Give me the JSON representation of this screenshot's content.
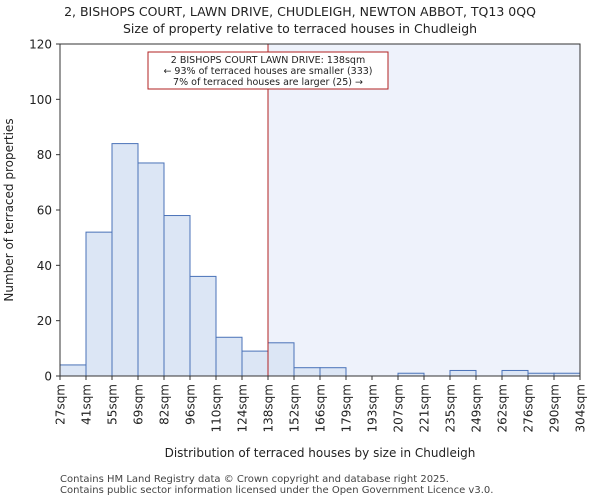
{
  "title_line1": "2, BISHOPS COURT, LAWN DRIVE, CHUDLEIGH, NEWTON ABBOT, TQ13 0QQ",
  "title_line2": "Size of property relative to terraced houses in Chudleigh",
  "footer_line1": "Contains HM Land Registry data © Crown copyright and database right 2025.",
  "footer_line2": "Contains public sector information licensed under the Open Government Licence v3.0.",
  "colors": {
    "bar_fill": "#dce6f5",
    "bar_stroke": "#4a72b8",
    "highlight_bg": "#eef2fb",
    "marker_line": "#b22222",
    "annotation_border": "#b22222"
  },
  "chart_data": {
    "type": "bar",
    "xlabel": "Distribution of terraced houses by size in Chudleigh",
    "ylabel": "Number of terraced properties",
    "ylim": [
      0,
      120
    ],
    "yticks": [
      0,
      20,
      40,
      60,
      80,
      100,
      120
    ],
    "bin_edges": [
      27,
      41,
      55,
      69,
      82,
      96,
      110,
      124,
      138,
      152,
      166,
      179,
      193,
      207,
      221,
      235,
      249,
      262,
      276,
      290,
      304
    ],
    "tick_labels": [
      "27sqm",
      "41sqm",
      "55sqm",
      "69sqm",
      "82sqm",
      "96sqm",
      "110sqm",
      "124sqm",
      "138sqm",
      "152sqm",
      "166sqm",
      "179sqm",
      "193sqm",
      "207sqm",
      "221sqm",
      "235sqm",
      "249sqm",
      "262sqm",
      "276sqm",
      "290sqm",
      "304sqm"
    ],
    "values": [
      4,
      52,
      84,
      77,
      58,
      36,
      14,
      9,
      12,
      3,
      3,
      0,
      0,
      1,
      0,
      2,
      0,
      2,
      1,
      1
    ],
    "marker_value": 138,
    "highlight_from_bin": 8,
    "annotation": {
      "line1": "2 BISHOPS COURT LAWN DRIVE: 138sqm",
      "line2": "← 93% of terraced houses are smaller (333)",
      "line3": "7% of terraced houses are larger (25) →"
    }
  }
}
